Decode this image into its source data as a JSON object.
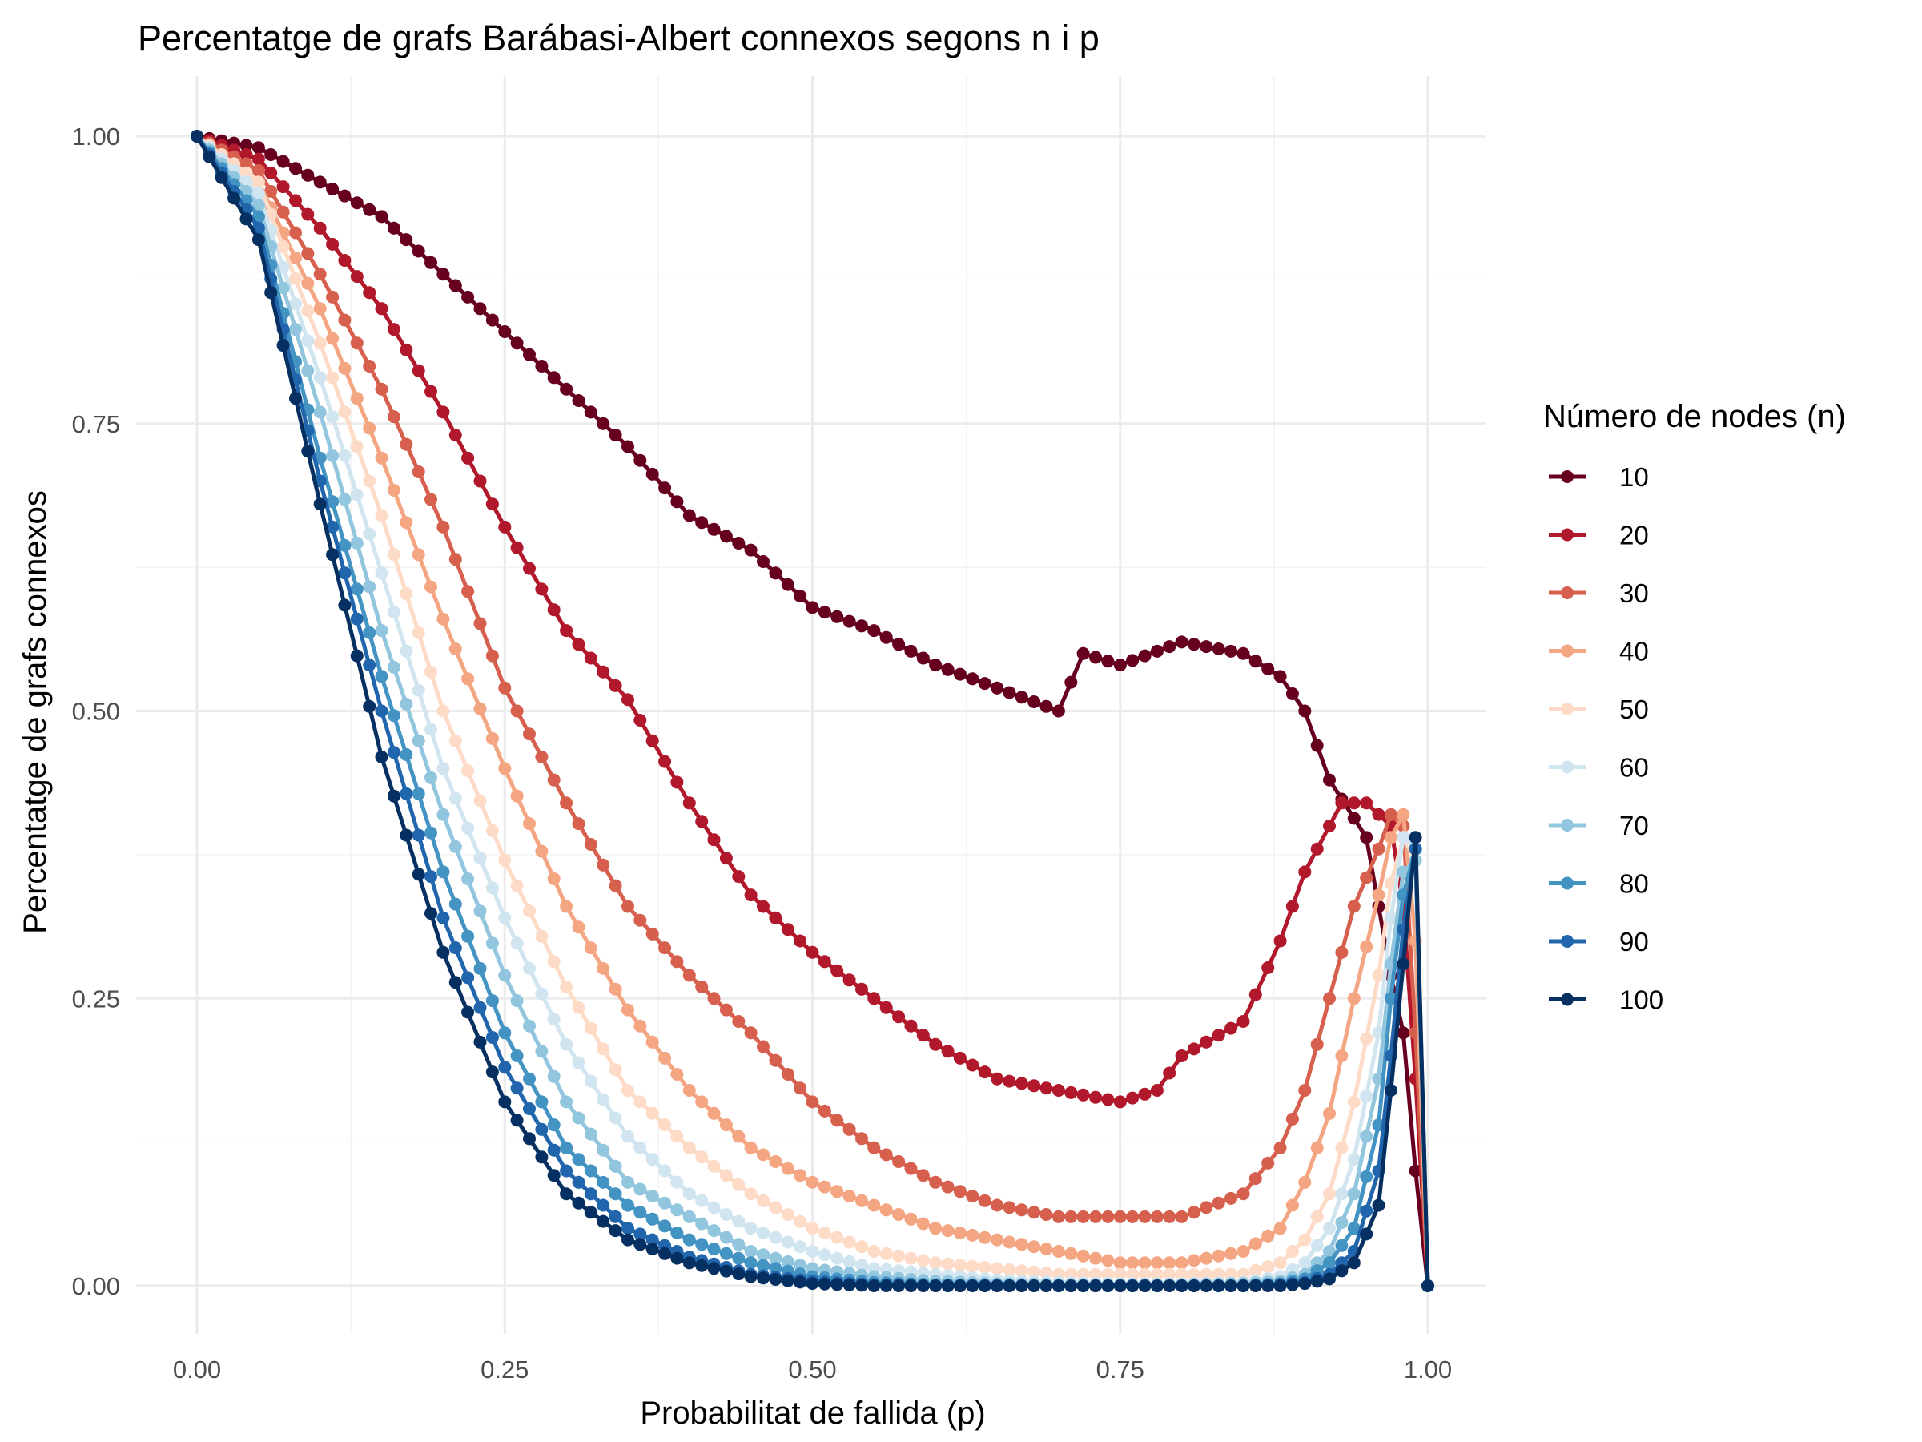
{
  "chart_data": {
    "type": "line",
    "title": "Percentatge de grafs Barábasi-Albert connexos segons n i p",
    "xlabel": "Probabilitat de fallida (p)",
    "ylabel": "Percentatge de grafs connexos",
    "xlim": [
      0,
      1
    ],
    "ylim": [
      0,
      1
    ],
    "x_ticks": [
      "0.00",
      "0.25",
      "0.50",
      "0.75",
      "1.00"
    ],
    "y_ticks": [
      "0.00",
      "0.25",
      "0.50",
      "0.75",
      "1.00"
    ],
    "grid": true,
    "legend": {
      "title": "Número de nodes (n)",
      "position": "right"
    },
    "x_step": 0.01,
    "series": [
      {
        "name": "10",
        "color": "#67001f",
        "anchors": [
          [
            0,
            1
          ],
          [
            0.05,
            0.99
          ],
          [
            0.1,
            0.96
          ],
          [
            0.15,
            0.93
          ],
          [
            0.2,
            0.88
          ],
          [
            0.25,
            0.83
          ],
          [
            0.3,
            0.78
          ],
          [
            0.35,
            0.73
          ],
          [
            0.4,
            0.67
          ],
          [
            0.45,
            0.64
          ],
          [
            0.5,
            0.59
          ],
          [
            0.55,
            0.57
          ],
          [
            0.6,
            0.54
          ],
          [
            0.65,
            0.52
          ],
          [
            0.7,
            0.5
          ],
          [
            0.72,
            0.55
          ],
          [
            0.75,
            0.54
          ],
          [
            0.8,
            0.56
          ],
          [
            0.85,
            0.55
          ],
          [
            0.88,
            0.53
          ],
          [
            0.9,
            0.5
          ],
          [
            0.92,
            0.44
          ],
          [
            0.95,
            0.39
          ],
          [
            0.97,
            0.27
          ],
          [
            0.98,
            0.22
          ],
          [
            0.99,
            0.1
          ],
          [
            1,
            0
          ]
        ]
      },
      {
        "name": "20",
        "color": "#b2182b",
        "anchors": [
          [
            0,
            1
          ],
          [
            0.05,
            0.98
          ],
          [
            0.1,
            0.92
          ],
          [
            0.15,
            0.85
          ],
          [
            0.2,
            0.76
          ],
          [
            0.25,
            0.66
          ],
          [
            0.3,
            0.57
          ],
          [
            0.35,
            0.51
          ],
          [
            0.4,
            0.42
          ],
          [
            0.45,
            0.34
          ],
          [
            0.5,
            0.29
          ],
          [
            0.55,
            0.25
          ],
          [
            0.6,
            0.21
          ],
          [
            0.65,
            0.18
          ],
          [
            0.7,
            0.17
          ],
          [
            0.75,
            0.16
          ],
          [
            0.78,
            0.17
          ],
          [
            0.8,
            0.2
          ],
          [
            0.85,
            0.23
          ],
          [
            0.88,
            0.3
          ],
          [
            0.9,
            0.36
          ],
          [
            0.93,
            0.42
          ],
          [
            0.95,
            0.42
          ],
          [
            0.97,
            0.4
          ],
          [
            0.98,
            0.33
          ],
          [
            0.99,
            0.18
          ],
          [
            1,
            0
          ]
        ]
      },
      {
        "name": "30",
        "color": "#d6604d",
        "anchors": [
          [
            0,
            1
          ],
          [
            0.05,
            0.97
          ],
          [
            0.1,
            0.88
          ],
          [
            0.15,
            0.78
          ],
          [
            0.2,
            0.66
          ],
          [
            0.25,
            0.52
          ],
          [
            0.3,
            0.42
          ],
          [
            0.35,
            0.33
          ],
          [
            0.4,
            0.27
          ],
          [
            0.45,
            0.22
          ],
          [
            0.5,
            0.16
          ],
          [
            0.55,
            0.12
          ],
          [
            0.6,
            0.09
          ],
          [
            0.65,
            0.07
          ],
          [
            0.7,
            0.06
          ],
          [
            0.75,
            0.06
          ],
          [
            0.8,
            0.06
          ],
          [
            0.85,
            0.08
          ],
          [
            0.88,
            0.12
          ],
          [
            0.9,
            0.17
          ],
          [
            0.92,
            0.25
          ],
          [
            0.94,
            0.33
          ],
          [
            0.96,
            0.38
          ],
          [
            0.97,
            0.41
          ],
          [
            0.98,
            0.4
          ],
          [
            0.99,
            0.22
          ],
          [
            1,
            0
          ]
        ]
      },
      {
        "name": "40",
        "color": "#f4a582",
        "anchors": [
          [
            0,
            1
          ],
          [
            0.05,
            0.96
          ],
          [
            0.1,
            0.85
          ],
          [
            0.15,
            0.72
          ],
          [
            0.2,
            0.58
          ],
          [
            0.25,
            0.45
          ],
          [
            0.3,
            0.33
          ],
          [
            0.35,
            0.24
          ],
          [
            0.4,
            0.17
          ],
          [
            0.45,
            0.12
          ],
          [
            0.5,
            0.09
          ],
          [
            0.55,
            0.07
          ],
          [
            0.6,
            0.05
          ],
          [
            0.65,
            0.04
          ],
          [
            0.7,
            0.03
          ],
          [
            0.75,
            0.02
          ],
          [
            0.8,
            0.02
          ],
          [
            0.85,
            0.03
          ],
          [
            0.88,
            0.05
          ],
          [
            0.9,
            0.09
          ],
          [
            0.92,
            0.15
          ],
          [
            0.94,
            0.25
          ],
          [
            0.96,
            0.34
          ],
          [
            0.97,
            0.39
          ],
          [
            0.98,
            0.41
          ],
          [
            0.99,
            0.3
          ],
          [
            1,
            0
          ]
        ]
      },
      {
        "name": "50",
        "color": "#fddbc7",
        "anchors": [
          [
            0,
            1
          ],
          [
            0.05,
            0.96
          ],
          [
            0.1,
            0.82
          ],
          [
            0.15,
            0.67
          ],
          [
            0.2,
            0.5
          ],
          [
            0.25,
            0.37
          ],
          [
            0.3,
            0.26
          ],
          [
            0.35,
            0.17
          ],
          [
            0.4,
            0.12
          ],
          [
            0.45,
            0.08
          ],
          [
            0.5,
            0.05
          ],
          [
            0.55,
            0.03
          ],
          [
            0.6,
            0.02
          ],
          [
            0.65,
            0.015
          ],
          [
            0.7,
            0.01
          ],
          [
            0.75,
            0.01
          ],
          [
            0.8,
            0.01
          ],
          [
            0.85,
            0.01
          ],
          [
            0.88,
            0.02
          ],
          [
            0.9,
            0.04
          ],
          [
            0.92,
            0.08
          ],
          [
            0.94,
            0.16
          ],
          [
            0.96,
            0.27
          ],
          [
            0.97,
            0.35
          ],
          [
            0.98,
            0.39
          ],
          [
            0.99,
            0.37
          ],
          [
            1,
            0
          ]
        ]
      },
      {
        "name": "60",
        "color": "#d1e5f0",
        "anchors": [
          [
            0,
            1
          ],
          [
            0.05,
            0.95
          ],
          [
            0.1,
            0.79
          ],
          [
            0.15,
            0.62
          ],
          [
            0.2,
            0.45
          ],
          [
            0.25,
            0.32
          ],
          [
            0.3,
            0.21
          ],
          [
            0.35,
            0.13
          ],
          [
            0.4,
            0.08
          ],
          [
            0.45,
            0.05
          ],
          [
            0.5,
            0.03
          ],
          [
            0.55,
            0.015
          ],
          [
            0.6,
            0.01
          ],
          [
            0.65,
            0.005
          ],
          [
            0.7,
            0.003
          ],
          [
            0.75,
            0.002
          ],
          [
            0.8,
            0.002
          ],
          [
            0.85,
            0.003
          ],
          [
            0.88,
            0.008
          ],
          [
            0.9,
            0.02
          ],
          [
            0.92,
            0.05
          ],
          [
            0.94,
            0.11
          ],
          [
            0.96,
            0.22
          ],
          [
            0.97,
            0.32
          ],
          [
            0.98,
            0.39
          ],
          [
            0.99,
            0.38
          ],
          [
            1,
            0
          ]
        ]
      },
      {
        "name": "70",
        "color": "#92c5de",
        "anchors": [
          [
            0,
            1
          ],
          [
            0.05,
            0.94
          ],
          [
            0.1,
            0.76
          ],
          [
            0.15,
            0.57
          ],
          [
            0.2,
            0.41
          ],
          [
            0.25,
            0.27
          ],
          [
            0.3,
            0.16
          ],
          [
            0.35,
            0.09
          ],
          [
            0.4,
            0.06
          ],
          [
            0.45,
            0.03
          ],
          [
            0.5,
            0.015
          ],
          [
            0.55,
            0.008
          ],
          [
            0.6,
            0.004
          ],
          [
            0.65,
            0.002
          ],
          [
            0.7,
            0.001
          ],
          [
            0.8,
            0.001
          ],
          [
            0.85,
            0.002
          ],
          [
            0.88,
            0.004
          ],
          [
            0.9,
            0.01
          ],
          [
            0.92,
            0.03
          ],
          [
            0.94,
            0.08
          ],
          [
            0.96,
            0.18
          ],
          [
            0.97,
            0.28
          ],
          [
            0.98,
            0.36
          ],
          [
            0.99,
            0.37
          ],
          [
            1,
            0
          ]
        ]
      },
      {
        "name": "80",
        "color": "#4393c3",
        "anchors": [
          [
            0,
            1
          ],
          [
            0.05,
            0.93
          ],
          [
            0.1,
            0.72
          ],
          [
            0.15,
            0.53
          ],
          [
            0.2,
            0.36
          ],
          [
            0.25,
            0.22
          ],
          [
            0.3,
            0.12
          ],
          [
            0.35,
            0.07
          ],
          [
            0.4,
            0.04
          ],
          [
            0.45,
            0.02
          ],
          [
            0.5,
            0.008
          ],
          [
            0.55,
            0.003
          ],
          [
            0.6,
            0.001
          ],
          [
            0.7,
            0
          ],
          [
            0.85,
            0
          ],
          [
            0.88,
            0.002
          ],
          [
            0.9,
            0.006
          ],
          [
            0.92,
            0.02
          ],
          [
            0.94,
            0.05
          ],
          [
            0.96,
            0.14
          ],
          [
            0.97,
            0.25
          ],
          [
            0.98,
            0.34
          ],
          [
            0.99,
            0.38
          ],
          [
            1,
            0
          ]
        ]
      },
      {
        "name": "90",
        "color": "#2166ac",
        "anchors": [
          [
            0,
            1
          ],
          [
            0.05,
            0.92
          ],
          [
            0.1,
            0.7
          ],
          [
            0.15,
            0.5
          ],
          [
            0.2,
            0.32
          ],
          [
            0.25,
            0.19
          ],
          [
            0.3,
            0.1
          ],
          [
            0.35,
            0.05
          ],
          [
            0.4,
            0.025
          ],
          [
            0.45,
            0.01
          ],
          [
            0.5,
            0.004
          ],
          [
            0.55,
            0.001
          ],
          [
            0.6,
            0
          ],
          [
            0.85,
            0
          ],
          [
            0.88,
            0.001
          ],
          [
            0.9,
            0.003
          ],
          [
            0.92,
            0.01
          ],
          [
            0.94,
            0.03
          ],
          [
            0.96,
            0.1
          ],
          [
            0.97,
            0.2
          ],
          [
            0.98,
            0.31
          ],
          [
            0.99,
            0.38
          ],
          [
            1,
            0
          ]
        ]
      },
      {
        "name": "100",
        "color": "#053061",
        "anchors": [
          [
            0,
            1
          ],
          [
            0.05,
            0.91
          ],
          [
            0.1,
            0.68
          ],
          [
            0.15,
            0.46
          ],
          [
            0.2,
            0.29
          ],
          [
            0.25,
            0.16
          ],
          [
            0.3,
            0.08
          ],
          [
            0.35,
            0.04
          ],
          [
            0.4,
            0.02
          ],
          [
            0.45,
            0.008
          ],
          [
            0.5,
            0.002
          ],
          [
            0.55,
            0
          ],
          [
            0.85,
            0
          ],
          [
            0.88,
            0
          ],
          [
            0.9,
            0.002
          ],
          [
            0.92,
            0.006
          ],
          [
            0.94,
            0.02
          ],
          [
            0.96,
            0.07
          ],
          [
            0.97,
            0.17
          ],
          [
            0.98,
            0.28
          ],
          [
            0.99,
            0.39
          ],
          [
            1,
            0
          ]
        ]
      }
    ]
  }
}
